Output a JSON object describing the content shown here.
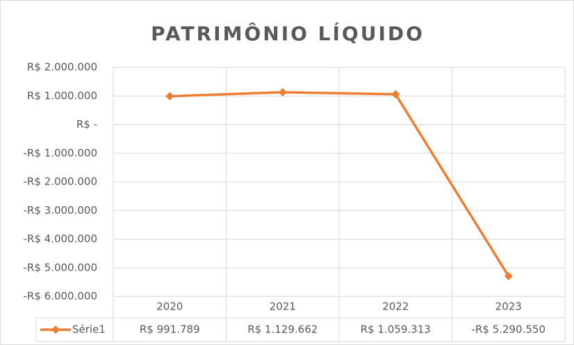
{
  "chart_data": {
    "type": "line",
    "title": "PATRIMÔNIO LÍQUIDO",
    "categories": [
      "2020",
      "2021",
      "2022",
      "2023"
    ],
    "series": [
      {
        "name": "Série1",
        "color": "#ED7D31",
        "values": [
          991789,
          1129662,
          1059313,
          -5290550
        ],
        "value_labels": [
          "R$ 991.789",
          "R$ 1.129.662",
          "R$ 1.059.313",
          "-R$ 5.290.550"
        ]
      }
    ],
    "ylim": [
      -6000000,
      2000000
    ],
    "yticks": [
      {
        "value": 2000000,
        "label": "R$ 2.000.000"
      },
      {
        "value": 1000000,
        "label": "R$ 1.000.000"
      },
      {
        "value": 0,
        "label": "R$ -"
      },
      {
        "value": -1000000,
        "label": "-R$ 1.000.000"
      },
      {
        "value": -2000000,
        "label": "-R$ 2.000.000"
      },
      {
        "value": -3000000,
        "label": "-R$ 3.000.000"
      },
      {
        "value": -4000000,
        "label": "-R$ 4.000.000"
      },
      {
        "value": -5000000,
        "label": "-R$ 5.000.000"
      },
      {
        "value": -6000000,
        "label": "-R$ 6.000.000"
      }
    ],
    "grid": true
  }
}
